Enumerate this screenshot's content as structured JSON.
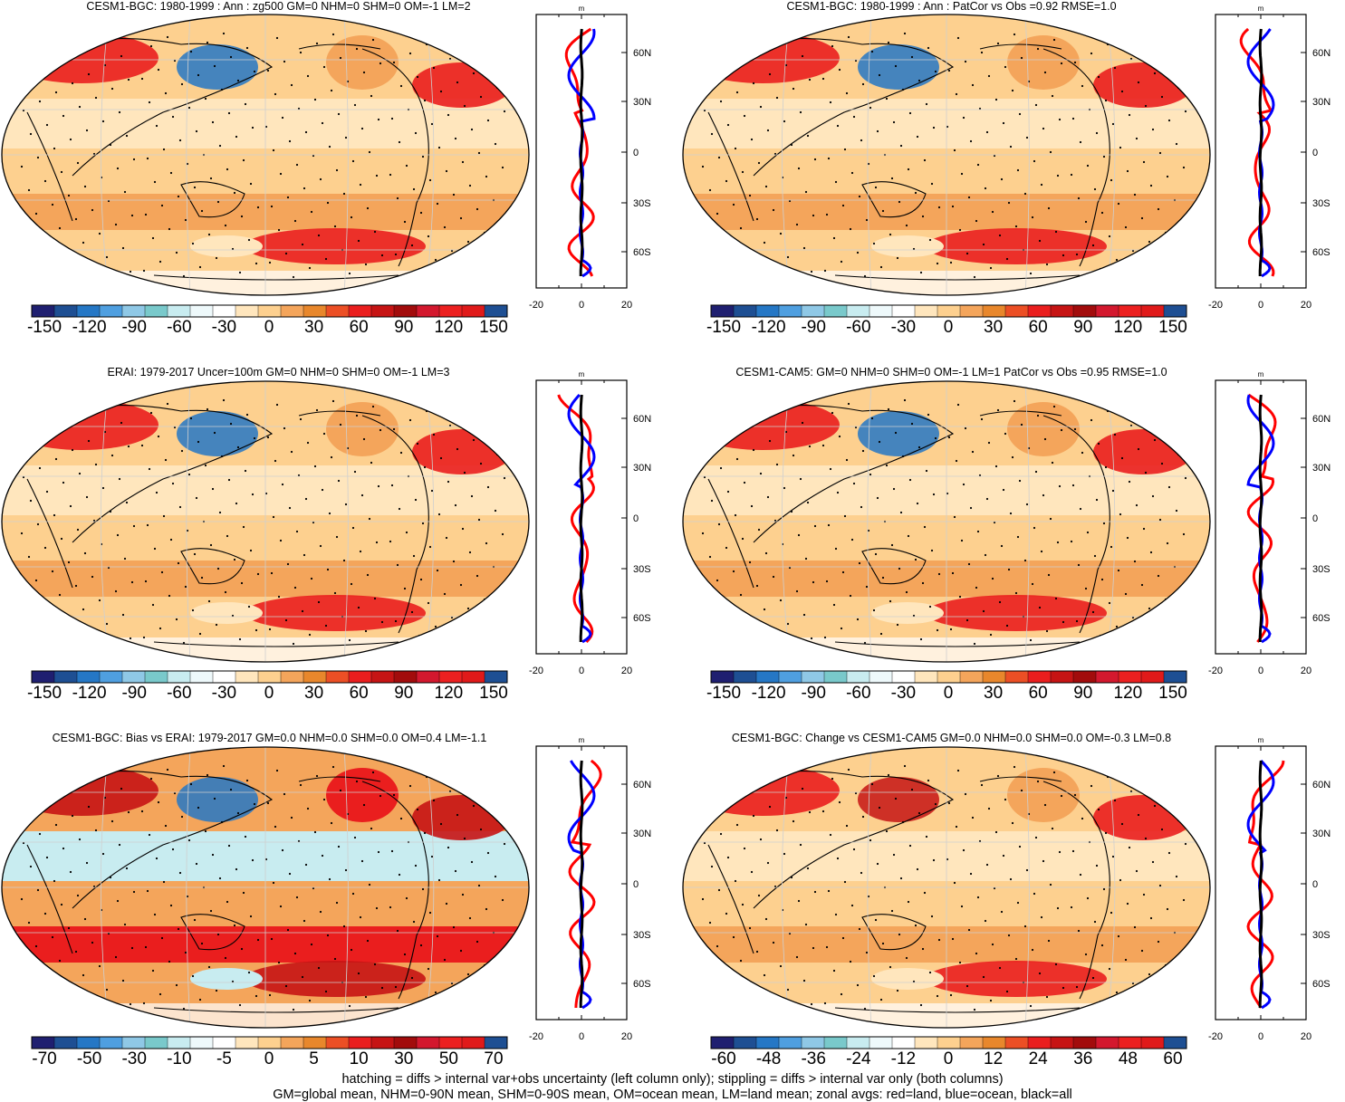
{
  "footer": {
    "line1": "hatching = diffs > internal var+obs uncertainty (left column only); stippling = diffs > internal var only (both columns)",
    "line2": "GM=global mean, NHM=0-90N mean, SHM=0-90S mean, OM=ocean mean, LM=land mean; zonal avgs: red=land, blue=ocean, black=all"
  },
  "zonal_unit": "m",
  "zonal_lat_labels": [
    "60N",
    "30N",
    "0",
    "30S",
    "60S"
  ],
  "zonal_x_labels": [
    "-20",
    "0",
    "20"
  ],
  "colors": {
    "land_line": "#ff0000",
    "ocean_line": "#0000ff",
    "all_line": "#000000",
    "cbar": [
      "#1f1f70",
      "#1e4f93",
      "#2577c5",
      "#4f9fe0",
      "#8fc8e6",
      "#79c9cb",
      "#c8ecf0",
      "#eef9fb",
      "#ffffff",
      "#ffe6bd",
      "#fdd08f",
      "#f4a55b",
      "#e8872c",
      "#ec4f25",
      "#ea1e1e",
      "#c61414",
      "#a20c0c",
      "#d3182e",
      "#ec2020",
      "#e01a1a",
      "#1e4f93"
    ]
  },
  "panels": [
    {
      "title": "CESM1-BGC: 1980-1999 : Ann : zg500 GM=0 NHM=0 SHM=0 OM=-1 LM=2",
      "cbar_labels": [
        "-150",
        "-120",
        "-90",
        "-60",
        "-30",
        "0",
        "30",
        "60",
        "90",
        "120",
        "150"
      ]
    },
    {
      "title": "CESM1-BGC: 1980-1999 : Ann : PatCor vs Obs =0.92 RMSE=1.0",
      "cbar_labels": [
        "-150",
        "-120",
        "-90",
        "-60",
        "-30",
        "0",
        "30",
        "60",
        "90",
        "120",
        "150"
      ]
    },
    {
      "title": "ERAI: 1979-2017 Uncer=100m GM=0 NHM=0 SHM=0 OM=-1 LM=3",
      "cbar_labels": [
        "-150",
        "-120",
        "-90",
        "-60",
        "-30",
        "0",
        "30",
        "60",
        "90",
        "120",
        "150"
      ]
    },
    {
      "title": "CESM1-CAM5: GM=0 NHM=0 SHM=0 OM=-1 LM=1 PatCor vs Obs =0.95 RMSE=1.0",
      "cbar_labels": [
        "-150",
        "-120",
        "-90",
        "-60",
        "-30",
        "0",
        "30",
        "60",
        "90",
        "120",
        "150"
      ]
    },
    {
      "title": "CESM1-BGC: Bias vs ERAI: 1979-2017 GM=0.0 NHM=0.0 SHM=0.0 OM=0.4 LM=-1.1",
      "cbar_labels": [
        "-70",
        "-50",
        "-30",
        "-10",
        "-5",
        "0",
        "5",
        "10",
        "30",
        "50",
        "70"
      ]
    },
    {
      "title": "CESM1-BGC: Change vs CESM1-CAM5 GM=0.0 NHM=0.0 SHM=0.0 OM=-0.3 LM=0.8",
      "cbar_labels": [
        "-60",
        "-48",
        "-36",
        "-24",
        "-12",
        "0",
        "12",
        "24",
        "36",
        "48",
        "60"
      ]
    }
  ]
}
